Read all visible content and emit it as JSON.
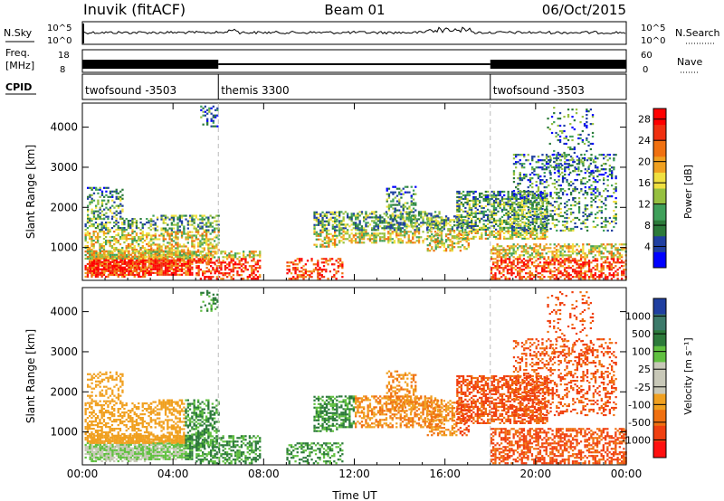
{
  "header": {
    "station": "Inuvik (fitACF)",
    "beam": "Beam 01",
    "date": "06/Oct/2015"
  },
  "status_panels": {
    "left_labels": [
      "N.Sky",
      "Freq.",
      "[MHz]",
      "CPID"
    ],
    "right_labels": [
      "N.Search",
      "Nave"
    ],
    "nsky_ticks": [
      "10^5",
      "10^0"
    ],
    "nsearch_ticks": [
      "10^5",
      "10^0"
    ],
    "freq_ticks": [
      "18",
      "8"
    ],
    "nave_ticks": [
      "60",
      "0"
    ],
    "cpid_segments": [
      {
        "name": "twofsound -3503",
        "start_hour": 0
      },
      {
        "name": "themis 3300",
        "start_hour": 6
      },
      {
        "name": "twofsound -3503",
        "start_hour": 18
      }
    ]
  },
  "colors": {
    "power": [
      "#0000ff",
      "#1f3fa0",
      "#2c7a3a",
      "#3fa05a",
      "#96c040",
      "#f0e040",
      "#f0a020",
      "#f07010",
      "#f03010",
      "#ff0000"
    ],
    "velocity": [
      "#ff1010",
      "#f04010",
      "#f07010",
      "#f0a020",
      "#c8c8b8",
      "#c8c8b8",
      "#60c040",
      "#2c7a3a",
      "#3c7a6a",
      "#1f3fa0"
    ]
  },
  "chart_data": [
    {
      "type": "heatmap",
      "name": "power",
      "ylabel": "Slant Range [km]",
      "xlabel": "",
      "ylim": [
        180,
        4600
      ],
      "xlim": [
        0,
        24
      ],
      "y_ticks": [
        1000,
        2000,
        3000,
        4000
      ],
      "x_ticks": [
        0,
        4,
        8,
        12,
        16,
        20,
        24
      ],
      "colorbar": {
        "label": "Power [dB]",
        "ticks": [
          4,
          8,
          12,
          16,
          20,
          24,
          28
        ],
        "range": [
          0,
          30
        ]
      }
    },
    {
      "type": "heatmap",
      "name": "velocity",
      "ylabel": "Slant Range [km]",
      "xlabel": "Time UT",
      "ylim": [
        180,
        4600
      ],
      "xlim": [
        0,
        24
      ],
      "y_ticks": [
        1000,
        2000,
        3000,
        4000
      ],
      "x_ticks": [
        0,
        4,
        8,
        12,
        16,
        20,
        24
      ],
      "x_tick_labels": [
        "00:00",
        "04:00",
        "08:00",
        "12:00",
        "16:00",
        "20:00",
        "00:00"
      ],
      "colorbar": {
        "label": "Velocity [m s⁻¹]",
        "ticks": [
          "1000",
          "500",
          "100",
          "25",
          "-25",
          "-100",
          "-500",
          "-1000"
        ]
      }
    }
  ]
}
